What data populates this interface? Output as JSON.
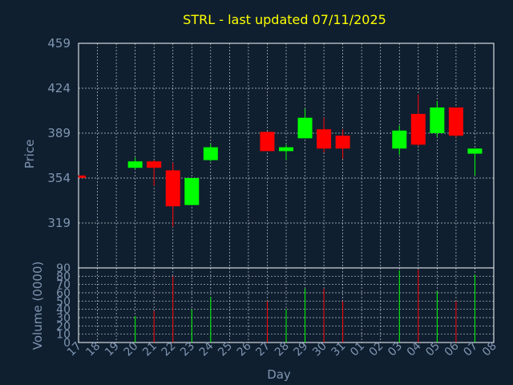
{
  "chart_data": {
    "type": "candlestick",
    "title": "STRL - last updated 07/11/2025",
    "xlabel": "Day",
    "ylabel_price": "Price",
    "ylabel_volume": "Volume (0000)",
    "price_ticks": [
      "459",
      "424",
      "389",
      "354",
      "319"
    ],
    "price_tick_values": [
      459,
      424,
      389,
      354,
      319
    ],
    "price_ylim": [
      284,
      459
    ],
    "volume_ticks": [
      "90",
      "80",
      "70",
      "60",
      "50",
      "40",
      "30",
      "20",
      "10",
      "0"
    ],
    "volume_tick_values": [
      90,
      80,
      70,
      60,
      50,
      40,
      30,
      20,
      10,
      0
    ],
    "volume_ylim": [
      0,
      90
    ],
    "day_labels": [
      "17",
      "18",
      "19",
      "20",
      "21",
      "22",
      "23",
      "24",
      "25",
      "26",
      "27",
      "28",
      "29",
      "30",
      "31",
      "01",
      "02",
      "03",
      "04",
      "05",
      "06",
      "07",
      "08"
    ],
    "colors": {
      "up": "#00ff00",
      "down": "#ff0000",
      "title": "#ffff00",
      "label": "#7f95b0",
      "background": "#0f1f30"
    },
    "candles": [
      {
        "day": "17",
        "open": 356,
        "high": 356,
        "low": 355,
        "close": 355,
        "volume": 0
      },
      {
        "day": "20",
        "open": 362,
        "high": 370,
        "low": 361,
        "close": 367,
        "volume": 32
      },
      {
        "day": "21",
        "open": 367,
        "high": 368,
        "low": 348,
        "close": 362,
        "volume": 38
      },
      {
        "day": "22",
        "open": 360,
        "high": 366,
        "low": 316,
        "close": 332,
        "volume": 80
      },
      {
        "day": "23",
        "open": 333,
        "high": 354,
        "low": 333,
        "close": 354,
        "volume": 40
      },
      {
        "day": "24",
        "open": 368,
        "high": 381,
        "low": 367,
        "close": 378,
        "volume": 55
      },
      {
        "day": "27",
        "open": 390,
        "high": 390,
        "low": 375,
        "close": 375,
        "volume": 50
      },
      {
        "day": "28",
        "open": 375,
        "high": 380,
        "low": 368,
        "close": 378,
        "volume": 40
      },
      {
        "day": "29",
        "open": 385,
        "high": 408,
        "low": 385,
        "close": 401,
        "volume": 65
      },
      {
        "day": "30",
        "open": 392,
        "high": 401,
        "low": 374,
        "close": 377,
        "volume": 65
      },
      {
        "day": "31",
        "open": 387,
        "high": 392,
        "low": 369,
        "close": 377,
        "volume": 50
      },
      {
        "day": "03",
        "open": 377,
        "high": 395,
        "low": 372,
        "close": 391,
        "volume": 87
      },
      {
        "day": "04",
        "open": 404,
        "high": 419,
        "low": 379,
        "close": 380,
        "volume": 88
      },
      {
        "day": "05",
        "open": 389,
        "high": 414,
        "low": 386,
        "close": 409,
        "volume": 62
      },
      {
        "day": "06",
        "open": 409,
        "high": 409,
        "low": 386,
        "close": 387,
        "volume": 50
      },
      {
        "day": "07",
        "open": 373,
        "high": 377,
        "low": 356,
        "close": 377,
        "volume": 82
      }
    ]
  }
}
